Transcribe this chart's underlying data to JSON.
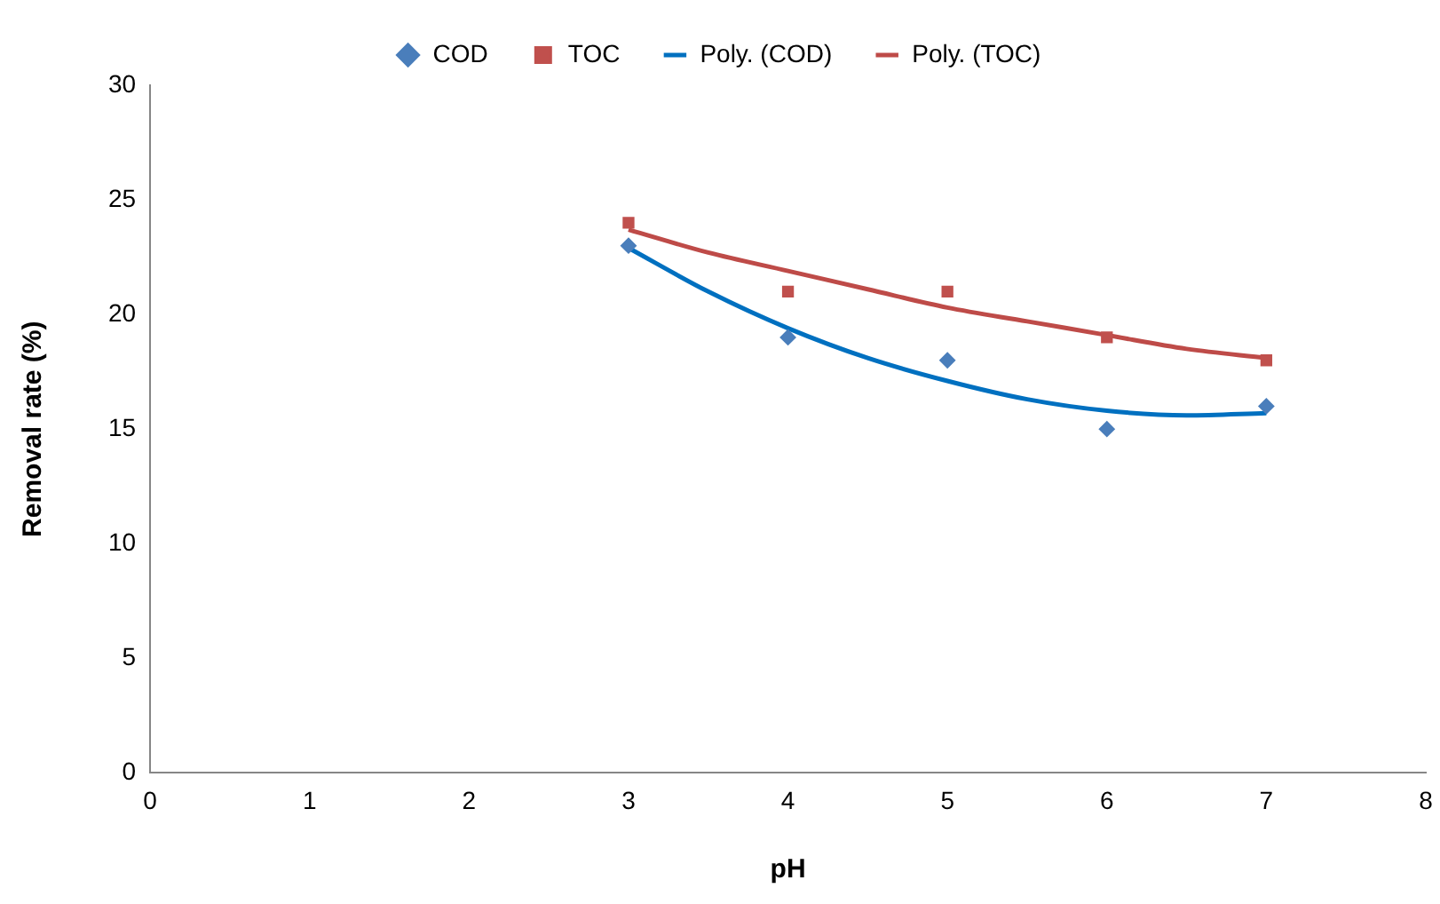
{
  "chart_data": {
    "type": "scatter",
    "xlabel": "pH",
    "ylabel": "Removal rate (%)",
    "xlim": [
      0,
      8
    ],
    "xticks": [
      0,
      1,
      2,
      3,
      4,
      5,
      6,
      7,
      8
    ],
    "ylim": [
      0,
      30
    ],
    "yticks": [
      0,
      5,
      10,
      15,
      20,
      25,
      30
    ],
    "grid": false,
    "legend": "top",
    "series": [
      {
        "name": "COD",
        "type": "scatter",
        "marker": "diamond",
        "color": "#4a7ebb",
        "x": [
          3,
          4,
          5,
          6,
          7
        ],
        "values": [
          23,
          19,
          18,
          15,
          16
        ]
      },
      {
        "name": "TOC",
        "type": "scatter",
        "marker": "square",
        "color": "#c0504d",
        "x": [
          3,
          4,
          5,
          6,
          7
        ],
        "values": [
          24,
          21,
          21,
          19,
          18
        ]
      },
      {
        "name": "Poly. (COD)",
        "type": "line",
        "marker": "none",
        "color": "#0070c0",
        "x": [
          3,
          3.5,
          4,
          4.5,
          5,
          5.5,
          6,
          6.5,
          7
        ],
        "values": [
          22.9,
          21.0,
          19.4,
          18.1,
          17.1,
          16.3,
          15.8,
          15.6,
          15.7
        ]
      },
      {
        "name": "Poly. (TOC)",
        "type": "line",
        "marker": "none",
        "color": "#be4b48",
        "x": [
          3,
          3.5,
          4,
          4.5,
          5,
          5.5,
          6,
          6.5,
          7
        ],
        "values": [
          23.7,
          22.7,
          21.9,
          21.1,
          20.3,
          19.7,
          19.1,
          18.5,
          18.1
        ]
      }
    ]
  }
}
